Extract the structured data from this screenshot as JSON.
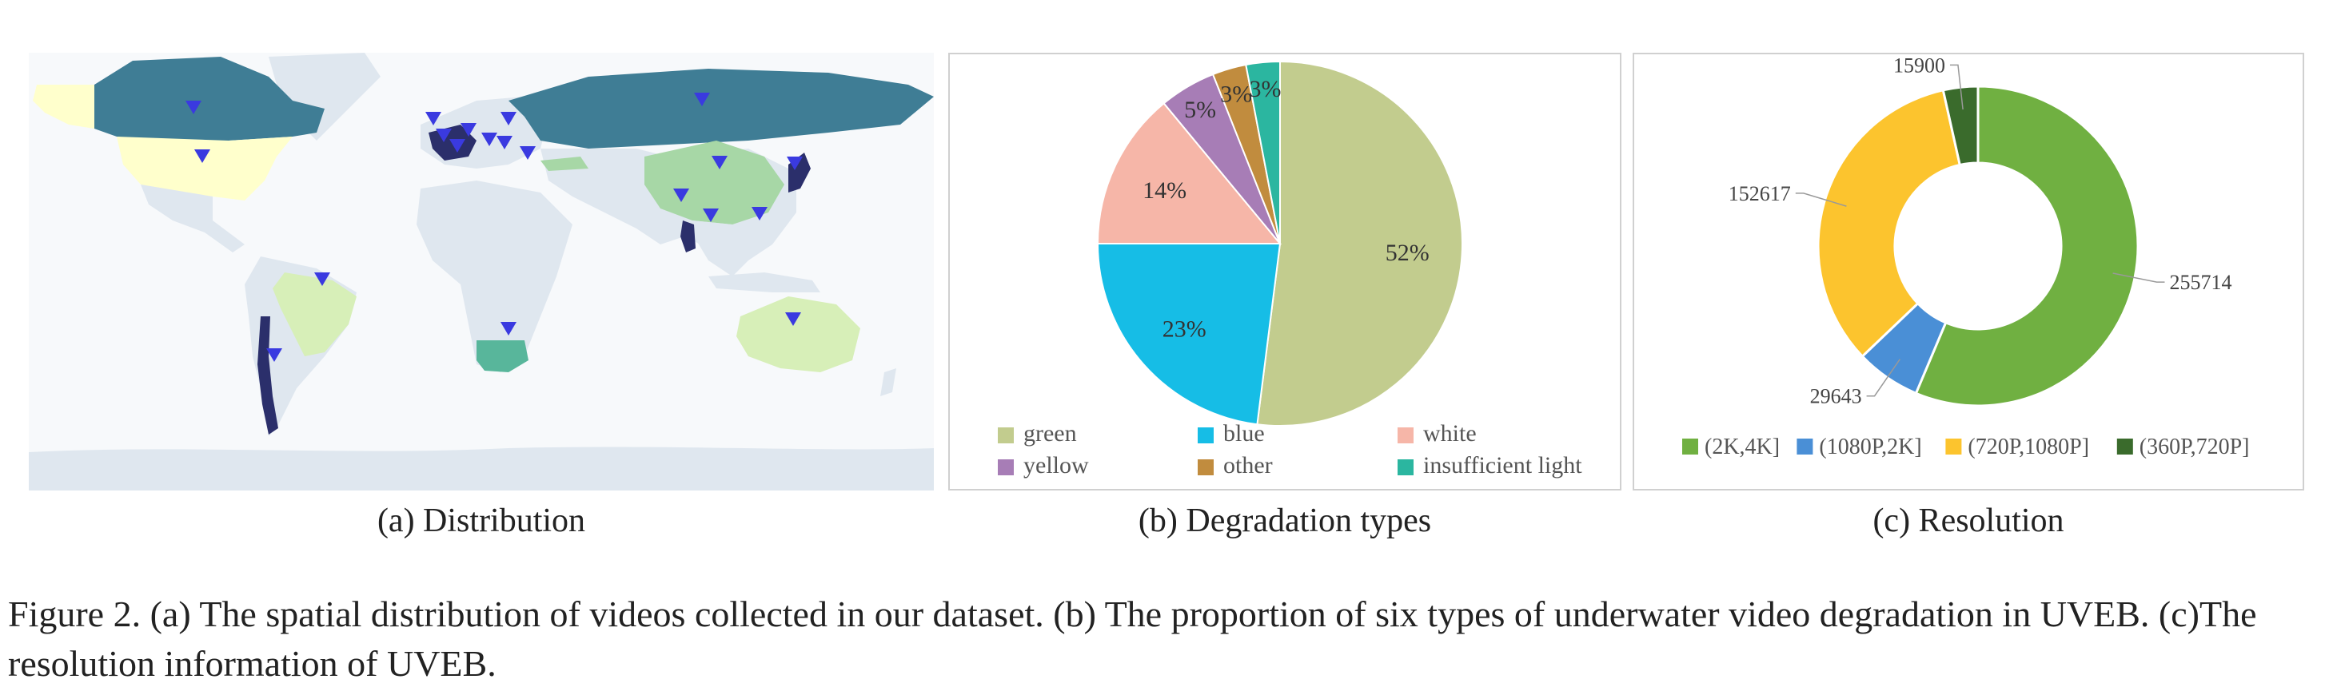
{
  "subcaptions": {
    "a": "(a) Distribution",
    "b": "(b) Degradation types",
    "c": "(c) Resolution"
  },
  "caption": "Figure 2. (a) The spatial distribution of videos collected in our dataset. (b) The proportion of six types of underwater video degradation in UVEB. (c)The resolution information of UVEB.",
  "colors": {
    "map_ocean": "#f7f9fb",
    "map_land": "#dfe7ef",
    "map_dark_teal": "#3f7d95",
    "map_pale_yellow": "#ffffcc",
    "map_light_green": "#d7efb8",
    "map_green": "#a7d7a6",
    "map_teal_green": "#58b69b",
    "map_navy": "#2b2f6b",
    "marker_blue": "#3a3ae0"
  },
  "chart_data": [
    {
      "type": "pie",
      "title": "",
      "slices": [
        {
          "label": "green",
          "value": 52,
          "text": "52%",
          "color": "#c2cc8e"
        },
        {
          "label": "blue",
          "value": 23,
          "text": "23%",
          "color": "#16bde6"
        },
        {
          "label": "white",
          "value": 14,
          "text": "14%",
          "color": "#f6b6a8"
        },
        {
          "label": "yellow",
          "value": 5,
          "text": "5%",
          "color": "#a77db6"
        },
        {
          "label": "other",
          "value": 3,
          "text": "3%",
          "color": "#c18c3e"
        },
        {
          "label": "insufficient light",
          "value": 3,
          "text": "3%",
          "color": "#2bb6a0"
        }
      ],
      "legend_placement": "bottom"
    },
    {
      "type": "pie",
      "subtype": "donut",
      "title": "",
      "slices": [
        {
          "label": "(2K,4K]",
          "value": 255714,
          "text": "255714",
          "color": "#70b041"
        },
        {
          "label": "(1080P,2K]",
          "value": 29643,
          "text": "29643",
          "color": "#4a8fd6"
        },
        {
          "label": "(720P,1080P]",
          "value": 152617,
          "text": "152617",
          "color": "#fcc42e"
        },
        {
          "label": "(360P,720P]",
          "value": 15900,
          "text": "15900",
          "color": "#3a6b2c"
        }
      ],
      "legend_placement": "bottom"
    }
  ]
}
